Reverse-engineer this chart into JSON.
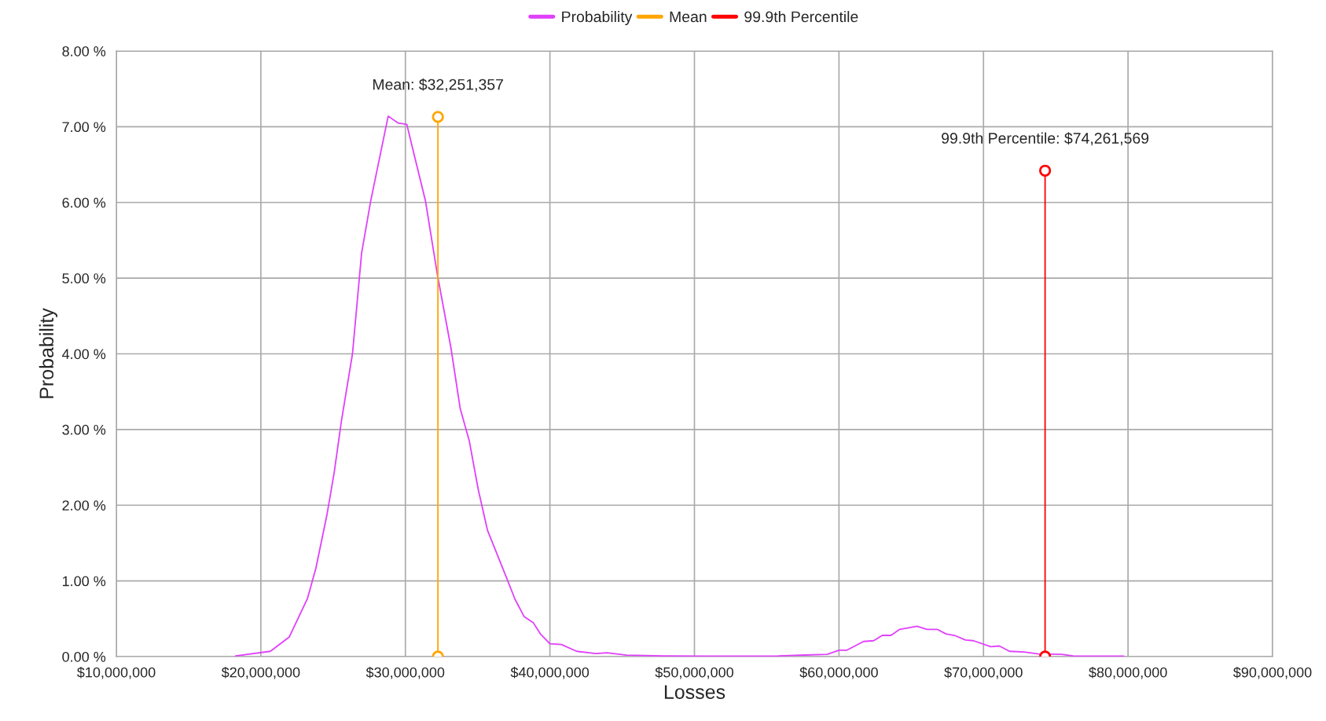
{
  "chart_data": {
    "type": "line",
    "xlabel": "Losses",
    "ylabel": "Probability",
    "xlim": [
      10000000,
      90000000
    ],
    "xticks": [
      {
        "value": 10000000,
        "label": "$10,000,000"
      },
      {
        "value": 20000000,
        "label": "$20,000,000"
      },
      {
        "value": 30000000,
        "label": "$30,000,000"
      },
      {
        "value": 40000000,
        "label": "$40,000,000"
      },
      {
        "value": 50000000,
        "label": "$50,000,000"
      },
      {
        "value": 60000000,
        "label": "$60,000,000"
      },
      {
        "value": 70000000,
        "label": "$70,000,000"
      },
      {
        "value": 80000000,
        "label": "$80,000,000"
      },
      {
        "value": 90000000,
        "label": "$90,000,000"
      }
    ],
    "ylim": [
      0,
      8
    ],
    "yticks": [
      {
        "value": 0,
        "label": "0.00 %"
      },
      {
        "value": 1,
        "label": "1.00 %"
      },
      {
        "value": 2,
        "label": "2.00 %"
      },
      {
        "value": 3,
        "label": "3.00 %"
      },
      {
        "value": 4,
        "label": "4.00 %"
      },
      {
        "value": 5,
        "label": "5.00 %"
      },
      {
        "value": 6,
        "label": "6.00 %"
      },
      {
        "value": 7,
        "label": "7.00 %"
      },
      {
        "value": 8,
        "label": "8.00 %"
      }
    ],
    "grid": true,
    "legend": "top",
    "series": [
      {
        "name": "Probability",
        "color": "#e040fb",
        "marker": "none",
        "x": [
          18260000,
          20660000,
          21970000,
          23230000,
          23810000,
          24570000,
          25080000,
          25580000,
          26340000,
          26970000,
          27600000,
          28810000,
          29490000,
          30100000,
          30710000,
          31390000,
          32220000,
          33160000,
          33790000,
          34420000,
          35050000,
          35680000,
          36940000,
          37580000,
          38210000,
          38840000,
          39340000,
          40000000,
          40800000,
          41850000,
          43170000,
          43960000,
          45300000,
          47900000,
          50500000,
          55800000,
          59200000,
          60000000,
          60550000,
          61700000,
          62400000,
          63000000,
          63600000,
          64200000,
          65400000,
          66100000,
          66800000,
          67400000,
          68000000,
          68750000,
          69300000,
          70500000,
          71100000,
          71800000,
          72800000,
          73800000,
          75400000,
          76200000,
          79700000
        ],
        "values": [
          0.01,
          0.07,
          0.26,
          0.77,
          1.17,
          1.87,
          2.44,
          3.12,
          4.0,
          5.33,
          6.02,
          7.14,
          7.05,
          7.03,
          6.55,
          6.02,
          5.04,
          4.07,
          3.28,
          2.85,
          2.2,
          1.67,
          1.07,
          0.76,
          0.53,
          0.45,
          0.3,
          0.17,
          0.16,
          0.07,
          0.04,
          0.05,
          0.02,
          0.01,
          0.005,
          0.01,
          0.03,
          0.085,
          0.085,
          0.2,
          0.21,
          0.28,
          0.28,
          0.36,
          0.4,
          0.36,
          0.36,
          0.3,
          0.28,
          0.22,
          0.21,
          0.13,
          0.14,
          0.07,
          0.06,
          0.035,
          0.03,
          0.01,
          0.005
        ]
      },
      {
        "name": "Mean",
        "color": "#ffa500",
        "marker": "circle",
        "x": [
          32251357,
          32251357
        ],
        "values": [
          0,
          7.13
        ]
      },
      {
        "name": "99.9th Percentile",
        "color": "#ff0000",
        "marker": "circle",
        "x": [
          74261569,
          74261569
        ],
        "values": [
          0,
          6.42
        ]
      }
    ],
    "annotations": [
      {
        "text": "Mean: $32,251,357",
        "x": 32251357,
        "y": 7.13
      },
      {
        "text": "99.9th Percentile: $74,261,569",
        "x": 74261569,
        "y": 6.42
      }
    ]
  }
}
